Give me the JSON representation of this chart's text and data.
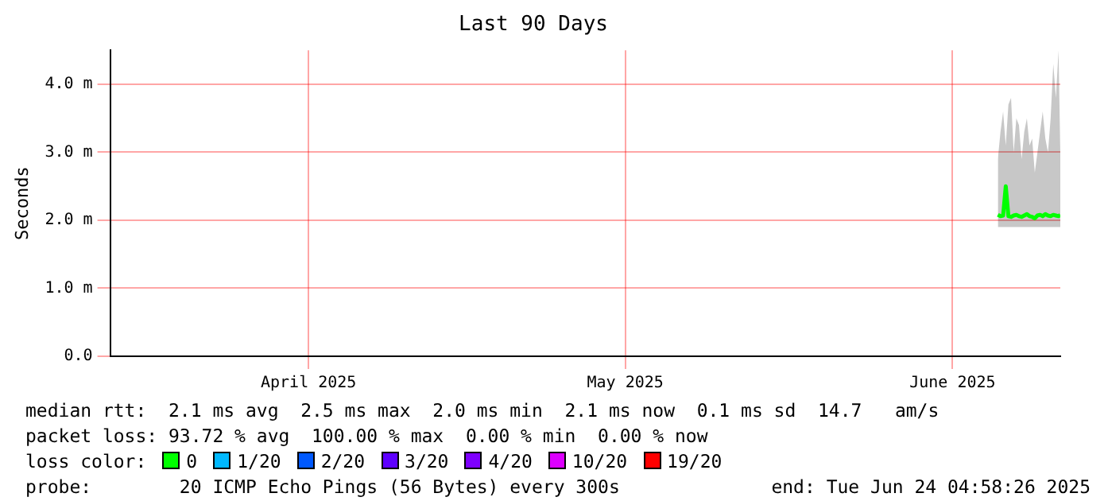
{
  "chart_data": {
    "type": "line",
    "title": "Last 90 Days",
    "ylabel": "Seconds",
    "xlim": [
      "2025-03-26T05:00",
      "2025-06-24T05:00"
    ],
    "xticks": [
      {
        "value": "2025-04-14",
        "label": "April 2025"
      },
      {
        "value": "2025-05-14",
        "label": "May 2025"
      },
      {
        "value": "2025-06-14",
        "label": "June 2025"
      }
    ],
    "ylim": [
      0,
      4.5
    ],
    "yticks": [
      {
        "value": 0,
        "label": "0.0"
      },
      {
        "value": 1,
        "label": "1.0 m"
      },
      {
        "value": 2,
        "label": "2.0 m"
      },
      {
        "value": 3,
        "label": "3.0 m"
      },
      {
        "value": 4,
        "label": "4.0 m"
      }
    ],
    "grid": true,
    "legend": "bottom",
    "legend_title": "loss color:",
    "marker": "none",
    "line_style": "solid",
    "x": [
      "2025-06-18T07:00",
      "2025-06-18T13:00",
      "2025-06-18T19:00",
      "2025-06-19T01:00",
      "2025-06-19T07:00",
      "2025-06-19T13:00",
      "2025-06-19T19:00",
      "2025-06-20T01:00",
      "2025-06-20T07:00",
      "2025-06-20T13:00",
      "2025-06-20T19:00",
      "2025-06-21T01:00",
      "2025-06-21T07:00",
      "2025-06-21T13:00",
      "2025-06-21T19:00",
      "2025-06-22T01:00",
      "2025-06-22T07:00",
      "2025-06-22T13:00",
      "2025-06-22T19:00",
      "2025-06-23T01:00",
      "2025-06-23T07:00",
      "2025-06-23T13:00",
      "2025-06-23T19:00",
      "2025-06-24T01:00",
      "2025-06-24T05:00"
    ],
    "series": [
      {
        "name": "0",
        "color": "#00ff00",
        "values": [
          2.08,
          2.06,
          2.07,
          2.5,
          2.06,
          2.05,
          2.07,
          2.08,
          2.06,
          2.05,
          2.07,
          2.09,
          2.06,
          2.05,
          2.03,
          2.07,
          2.08,
          2.06,
          2.09,
          2.07,
          2.06,
          2.08,
          2.07,
          2.06,
          2.08
        ],
        "lower": [
          1.9,
          1.9,
          1.9,
          1.9,
          1.9,
          1.9,
          1.9,
          1.9,
          1.9,
          1.9,
          1.9,
          1.9,
          1.9,
          1.9,
          1.9,
          1.9,
          1.9,
          1.9,
          1.9,
          1.9,
          1.9,
          1.9,
          1.9,
          1.9,
          1.9
        ],
        "upper": [
          2.9,
          3.3,
          3.6,
          3.1,
          3.7,
          3.8,
          3.0,
          3.5,
          3.4,
          2.9,
          3.3,
          3.5,
          3.1,
          3.2,
          2.7,
          3.0,
          3.3,
          3.6,
          3.2,
          3.0,
          3.5,
          4.3,
          3.8,
          4.5,
          3.0
        ]
      },
      {
        "name": "1/20",
        "color": "#00b8ff",
        "values": [
          null,
          null,
          null,
          null,
          null,
          null,
          null,
          null,
          null,
          null,
          null,
          null,
          null,
          null,
          null,
          null,
          null,
          null,
          null,
          null,
          null,
          null,
          null,
          null,
          null
        ]
      },
      {
        "name": "2/20",
        "color": "#0059ff",
        "values": [
          null,
          null,
          null,
          null,
          null,
          null,
          null,
          null,
          null,
          null,
          null,
          null,
          null,
          null,
          null,
          null,
          null,
          null,
          null,
          null,
          null,
          null,
          null,
          null,
          null
        ]
      },
      {
        "name": "3/20",
        "color": "#5e00ff",
        "values": [
          null,
          null,
          null,
          null,
          null,
          null,
          null,
          null,
          null,
          null,
          null,
          null,
          null,
          null,
          null,
          null,
          null,
          null,
          null,
          null,
          null,
          null,
          null,
          null,
          null
        ]
      },
      {
        "name": "4/20",
        "color": "#7e00ff",
        "values": [
          null,
          null,
          null,
          null,
          null,
          null,
          null,
          null,
          null,
          null,
          null,
          null,
          null,
          null,
          null,
          null,
          null,
          null,
          null,
          null,
          null,
          null,
          null,
          null,
          null
        ]
      },
      {
        "name": "10/20",
        "color": "#dd00ff",
        "values": [
          null,
          null,
          null,
          null,
          null,
          null,
          null,
          null,
          null,
          null,
          null,
          null,
          null,
          null,
          null,
          null,
          null,
          null,
          null,
          null,
          null,
          null,
          null,
          null,
          null
        ]
      },
      {
        "name": "19/20",
        "color": "#ff0000",
        "values": [
          null,
          null,
          null,
          null,
          null,
          null,
          null,
          null,
          null,
          null,
          null,
          null,
          null,
          null,
          null,
          null,
          null,
          null,
          null,
          null,
          null,
          null,
          null,
          null,
          null
        ]
      }
    ],
    "annotations": [
      "median rtt:  2.1 ms avg  2.5 ms max  2.0 ms min  2.1 ms now  0.1 ms sd  14.7   am/s",
      "packet loss: 93.72 % avg  100.00 % max  0.00 % min  0.00 % now",
      "probe:        20 ICMP Echo Pings (56 Bytes) every 300s",
      "end: Tue Jun 24 04:58:26 2025"
    ]
  }
}
